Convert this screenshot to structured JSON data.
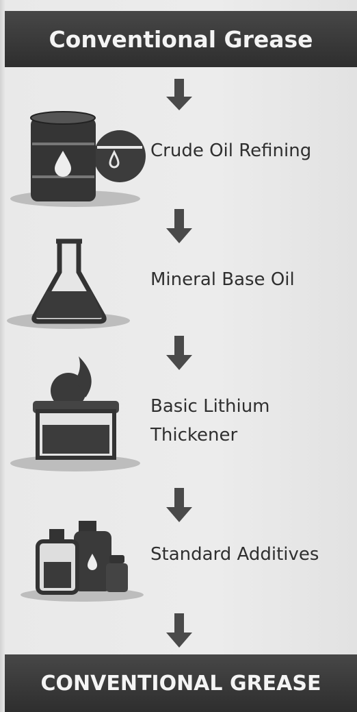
{
  "header": {
    "title": "Conventional Grease"
  },
  "steps": [
    {
      "label": "Crude Oil Refining"
    },
    {
      "label": "Mineral Base Oil"
    },
    {
      "label": "Basic Lithium Thickener"
    },
    {
      "label": "Standard Additives"
    }
  ],
  "footer": {
    "title": "CONVENTIONAL GREASE"
  }
}
